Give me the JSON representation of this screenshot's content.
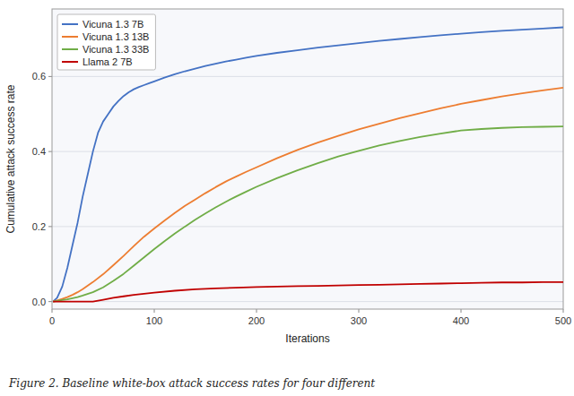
{
  "chart_data": {
    "type": "line",
    "xlabel": "Iterations",
    "ylabel": "Cumulative attack success rate",
    "caption": "Figure 2. Baseline white-box attack success rates for four different",
    "xlim": [
      0,
      500
    ],
    "ylim": [
      -0.02,
      0.78
    ],
    "xticks": [
      0,
      100,
      200,
      300,
      400,
      500
    ],
    "yticks": [
      {
        "value": 0,
        "label": "0.0"
      },
      0.2,
      0.4,
      0.6
    ],
    "grid": true,
    "legend": "upper left",
    "series": [
      {
        "name": "Vicuna 1.3 7B",
        "color": "#4472c4",
        "x": [
          1,
          5,
          10,
          15,
          20,
          25,
          30,
          35,
          40,
          45,
          50,
          55,
          60,
          65,
          70,
          75,
          80,
          85,
          90,
          95,
          100,
          110,
          120,
          130,
          140,
          150,
          160,
          170,
          180,
          190,
          200,
          220,
          240,
          260,
          280,
          300,
          320,
          340,
          360,
          380,
          400,
          420,
          440,
          460,
          480,
          500
        ],
        "values": [
          0.0,
          0.01,
          0.04,
          0.09,
          0.15,
          0.21,
          0.28,
          0.34,
          0.4,
          0.45,
          0.48,
          0.5,
          0.52,
          0.535,
          0.548,
          0.558,
          0.566,
          0.572,
          0.577,
          0.582,
          0.587,
          0.597,
          0.606,
          0.614,
          0.621,
          0.628,
          0.634,
          0.64,
          0.645,
          0.65,
          0.655,
          0.663,
          0.67,
          0.677,
          0.683,
          0.689,
          0.695,
          0.7,
          0.705,
          0.71,
          0.714,
          0.718,
          0.722,
          0.725,
          0.728,
          0.731
        ]
      },
      {
        "name": "Vicuna 1.3 13B",
        "color": "#ed7d31",
        "x": [
          1,
          5,
          10,
          15,
          20,
          25,
          30,
          40,
          50,
          60,
          70,
          80,
          90,
          100,
          110,
          120,
          130,
          140,
          150,
          160,
          170,
          180,
          190,
          200,
          220,
          240,
          260,
          280,
          300,
          320,
          340,
          360,
          380,
          400,
          420,
          440,
          460,
          480,
          500
        ],
        "values": [
          0.0,
          0.003,
          0.007,
          0.012,
          0.018,
          0.025,
          0.033,
          0.052,
          0.073,
          0.097,
          0.122,
          0.148,
          0.173,
          0.195,
          0.216,
          0.236,
          0.255,
          0.272,
          0.289,
          0.305,
          0.32,
          0.333,
          0.346,
          0.358,
          0.382,
          0.404,
          0.424,
          0.442,
          0.459,
          0.474,
          0.489,
          0.502,
          0.515,
          0.527,
          0.537,
          0.547,
          0.555,
          0.563,
          0.57
        ]
      },
      {
        "name": "Vicuna 1.3 33B",
        "color": "#70ad47",
        "x": [
          1,
          5,
          10,
          15,
          20,
          25,
          30,
          40,
          50,
          60,
          70,
          80,
          90,
          100,
          110,
          120,
          130,
          140,
          150,
          160,
          170,
          180,
          190,
          200,
          220,
          240,
          260,
          280,
          300,
          320,
          340,
          360,
          380,
          400,
          420,
          440,
          460,
          480,
          500
        ],
        "values": [
          0.0,
          0.002,
          0.004,
          0.006,
          0.009,
          0.012,
          0.016,
          0.025,
          0.038,
          0.055,
          0.074,
          0.096,
          0.118,
          0.14,
          0.161,
          0.181,
          0.2,
          0.218,
          0.235,
          0.251,
          0.266,
          0.28,
          0.293,
          0.306,
          0.329,
          0.35,
          0.369,
          0.387,
          0.402,
          0.416,
          0.428,
          0.439,
          0.448,
          0.456,
          0.46,
          0.463,
          0.465,
          0.466,
          0.467
        ]
      },
      {
        "name": "Llama 2 7B",
        "color": "#c00000",
        "x": [
          1,
          5,
          10,
          20,
          30,
          40,
          50,
          60,
          70,
          80,
          90,
          100,
          120,
          140,
          160,
          180,
          200,
          220,
          240,
          260,
          280,
          300,
          320,
          340,
          360,
          380,
          400,
          420,
          440,
          460,
          480,
          500
        ],
        "values": [
          0.0,
          0.0,
          0.0,
          0.0,
          0.0,
          0.0,
          0.005,
          0.01,
          0.014,
          0.018,
          0.021,
          0.024,
          0.029,
          0.033,
          0.035,
          0.037,
          0.039,
          0.04,
          0.041,
          0.042,
          0.043,
          0.044,
          0.045,
          0.046,
          0.047,
          0.048,
          0.049,
          0.05,
          0.051,
          0.051,
          0.052,
          0.052
        ]
      }
    ]
  }
}
